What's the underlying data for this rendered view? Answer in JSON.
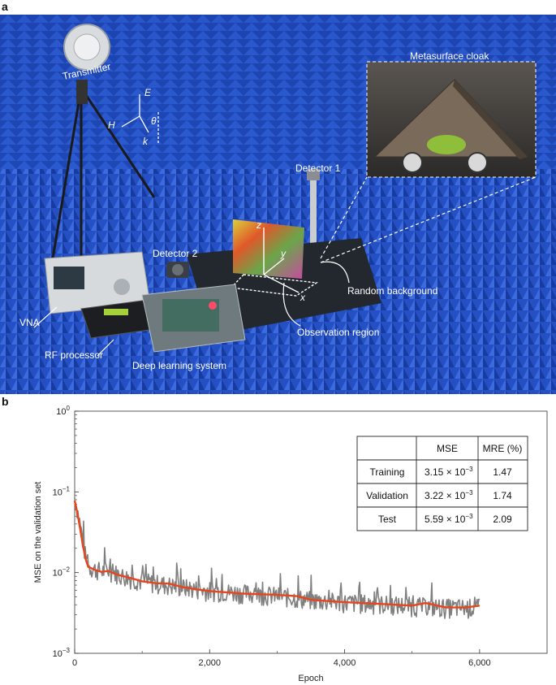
{
  "panels": {
    "a": "a",
    "b": "b"
  },
  "photo": {
    "labels": {
      "transmitter": "Transmitter",
      "detector1": "Detector 1",
      "detector2": "Detector 2",
      "metasurface": "Metasurface cloak",
      "random_bg": "Random background",
      "observation": "Observation region",
      "vna": "VNA",
      "rf": "RF processor",
      "deep": "Deep learning system",
      "e_field": "E",
      "h_field": "H",
      "k_vec": "k",
      "theta": "θ",
      "z_axis": "z",
      "y_axis": "y",
      "x_axis": "x"
    },
    "colors": {
      "chamber": "#1f4fc0",
      "absorber_dark": "#0e2a7a",
      "absorber_light": "#4d7fe6"
    }
  },
  "chart_data": {
    "type": "line",
    "xlabel": "Epoch",
    "ylabel": "MSE on the validation set",
    "xlim": [
      0,
      7000
    ],
    "ylim": [
      0.001,
      1
    ],
    "yscale": "log",
    "xticks": [
      0,
      2000,
      4000,
      6000
    ],
    "xtick_labels": [
      "0",
      "2,000",
      "4,000",
      "6,000"
    ],
    "ytick_labels": [
      {
        "base": "10",
        "exp": "0"
      },
      {
        "base": "10",
        "exp": "−1"
      },
      {
        "base": "10",
        "exp": "−2"
      },
      {
        "base": "10",
        "exp": "−3"
      }
    ],
    "series": [
      {
        "style": "raw",
        "color": "#7f7f7f",
        "x": [
          0,
          40,
          80,
          120,
          160,
          200,
          300,
          400,
          500,
          700,
          1000,
          1300,
          1600,
          2000,
          2500,
          3000,
          3500,
          4000,
          4500,
          5000,
          5500,
          6000
        ],
        "y": [
          0.085,
          0.06,
          0.04,
          0.025,
          0.016,
          0.012,
          0.011,
          0.0105,
          0.0108,
          0.0092,
          0.0078,
          0.0072,
          0.0066,
          0.006,
          0.0056,
          0.0052,
          0.0046,
          0.0043,
          0.0041,
          0.0039,
          0.0037,
          0.0037
        ]
      },
      {
        "style": "smoothed",
        "color": "#e8451c",
        "x": [
          0,
          40,
          80,
          120,
          160,
          200,
          300,
          400,
          500,
          600,
          700,
          800,
          1000,
          1200,
          1400,
          1600,
          1800,
          2000,
          2500,
          3000,
          3300,
          3500,
          4000,
          4500,
          5000,
          5200,
          5500,
          5800,
          6000
        ],
        "y": [
          0.078,
          0.055,
          0.035,
          0.022,
          0.015,
          0.0118,
          0.0108,
          0.0102,
          0.0105,
          0.0096,
          0.0091,
          0.0087,
          0.0078,
          0.0074,
          0.0073,
          0.0066,
          0.0062,
          0.0059,
          0.0055,
          0.0053,
          0.0051,
          0.0046,
          0.0043,
          0.0041,
          0.0039,
          0.0042,
          0.0037,
          0.0037,
          0.0039
        ]
      }
    ],
    "table": {
      "headers": [
        "",
        "MSE",
        "MRE (%)"
      ],
      "rows": [
        {
          "name": "Training",
          "mse_base": "3.15 × 10",
          "mse_exp": "−3",
          "mre": "1.47"
        },
        {
          "name": "Validation",
          "mse_base": "3.22 × 10",
          "mse_exp": "−3",
          "mre": "1.74"
        },
        {
          "name": "Test",
          "mse_base": "5.59 × 10",
          "mse_exp": "−3",
          "mre": "2.09"
        }
      ]
    }
  }
}
